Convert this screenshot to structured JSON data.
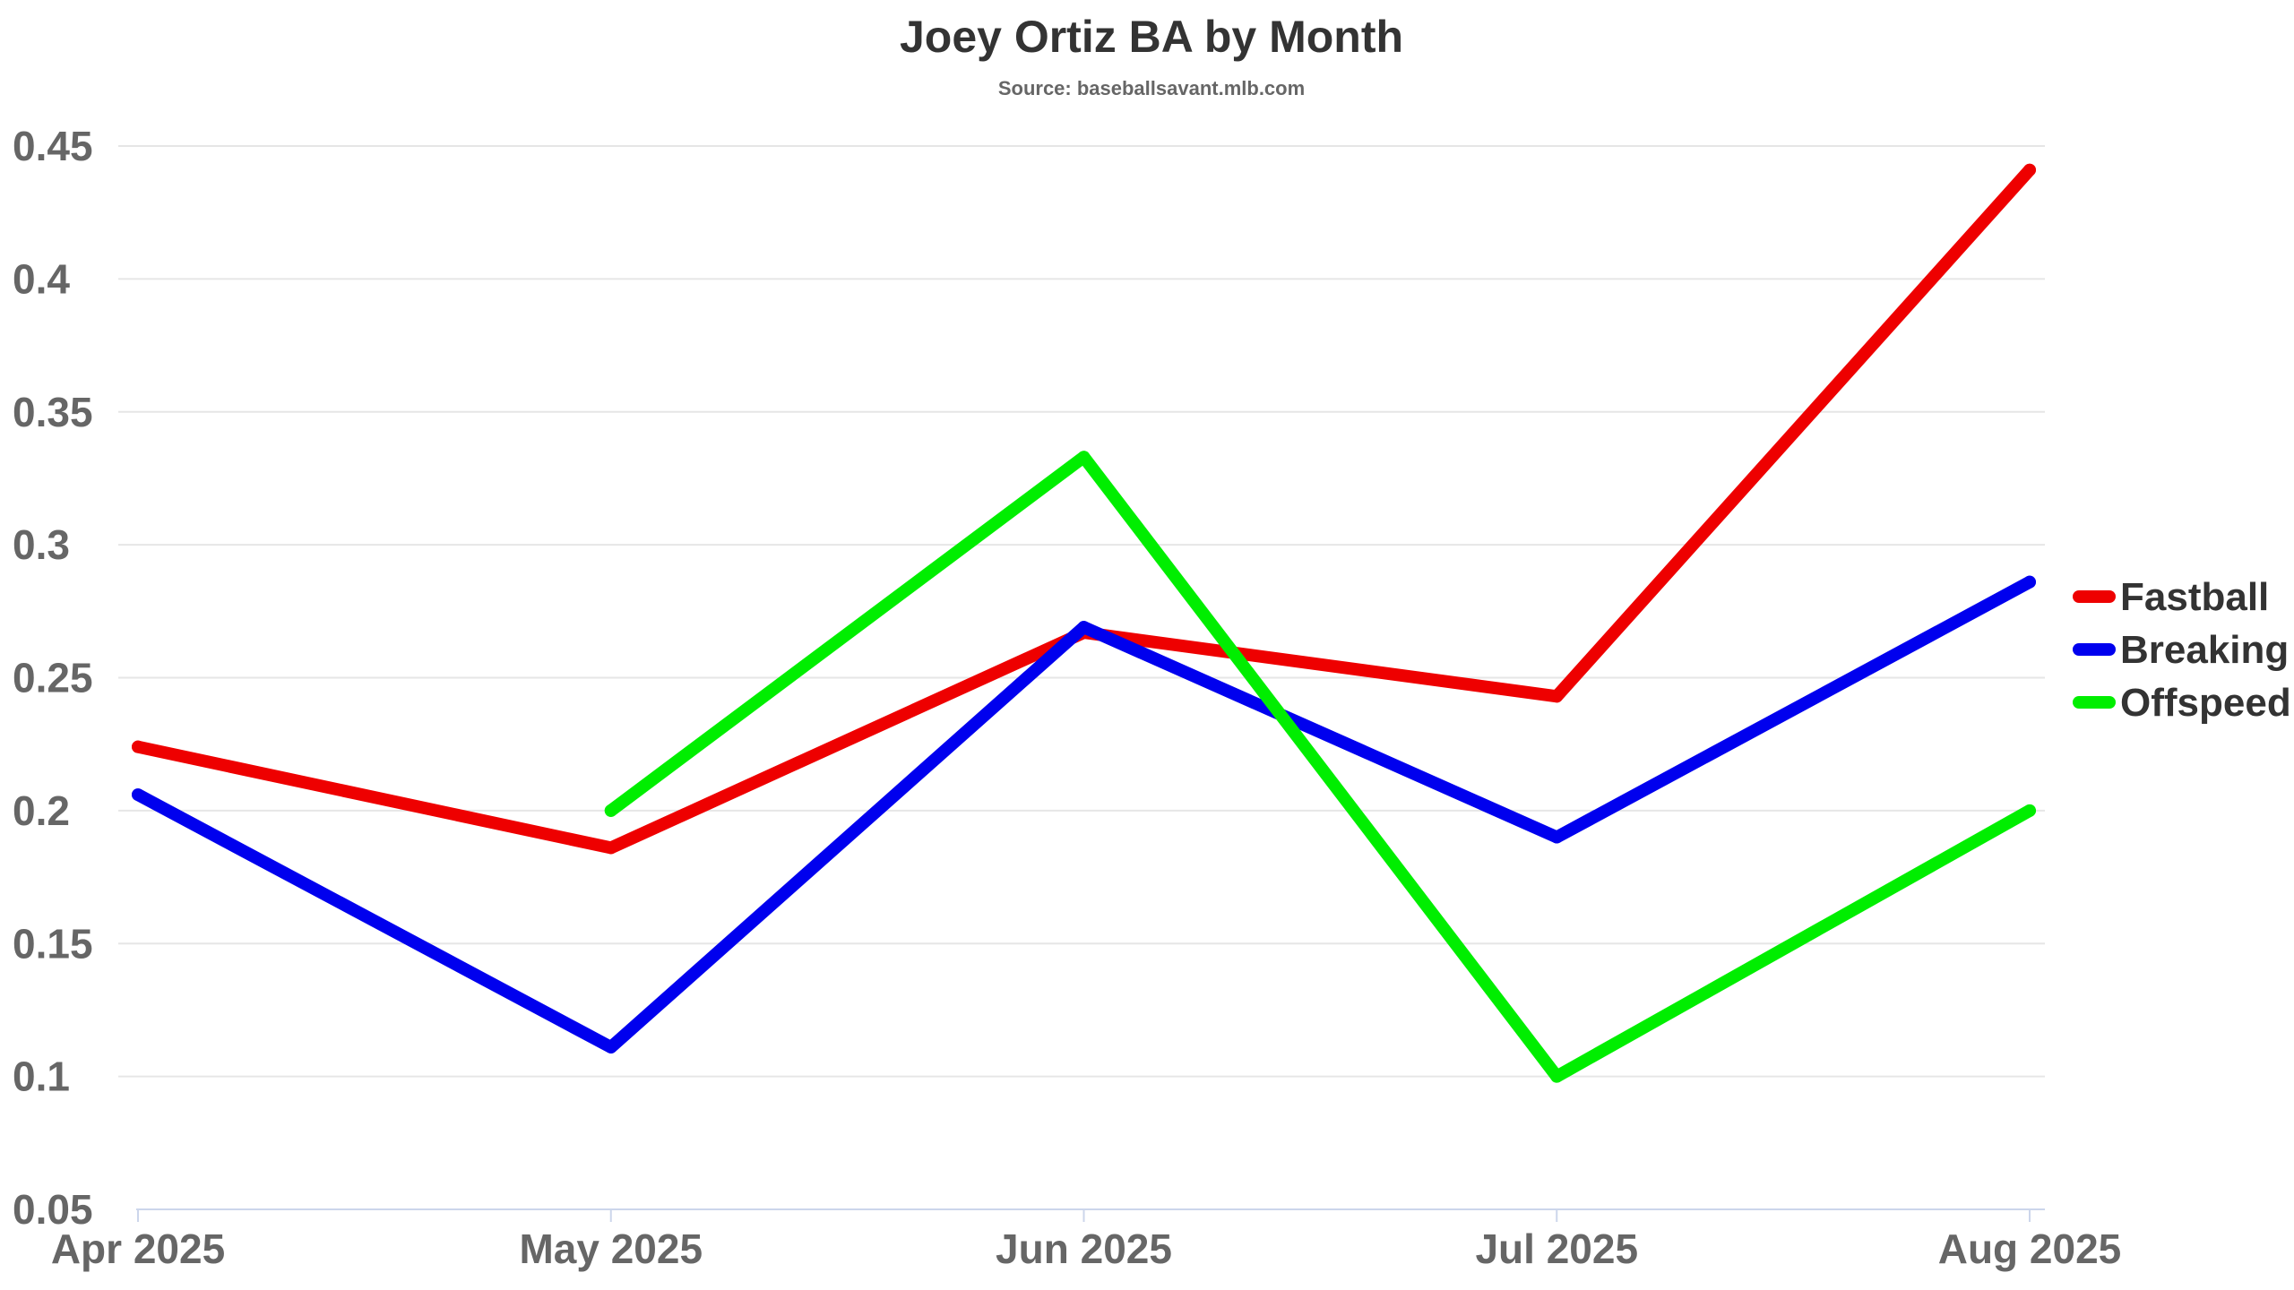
{
  "chart_data": {
    "type": "line",
    "title": "Joey Ortiz BA by Month",
    "subtitle": "Source: baseballsavant.mlb.com",
    "xlabel": "",
    "ylabel": "",
    "categories": [
      "Apr 2025",
      "May 2025",
      "Jun 2025",
      "Jul 2025",
      "Aug 2025"
    ],
    "ylim": [
      0.05,
      0.45
    ],
    "yticks": [
      "0.05",
      "0.1",
      "0.15",
      "0.2",
      "0.25",
      "0.3",
      "0.35",
      "0.4",
      "0.45"
    ],
    "grid": true,
    "legend_position": "right",
    "series": [
      {
        "name": "Fastball",
        "color": "#ee0000",
        "values": [
          0.224,
          0.186,
          0.267,
          0.243,
          0.441
        ]
      },
      {
        "name": "Breaking",
        "color": "#0000ee",
        "values": [
          0.206,
          0.111,
          0.269,
          0.19,
          0.286
        ]
      },
      {
        "name": "Offspeed",
        "color": "#00ee00",
        "values": [
          null,
          0.2,
          0.333,
          0.1,
          0.2
        ]
      }
    ]
  }
}
